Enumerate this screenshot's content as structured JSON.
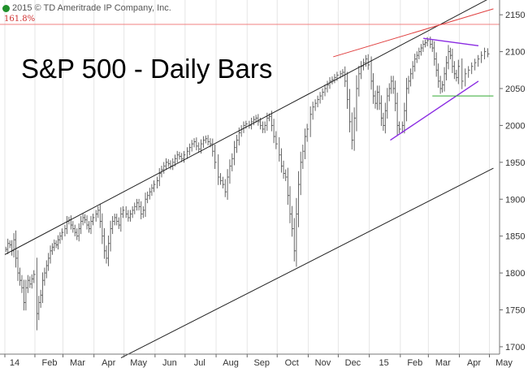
{
  "copyright": "2015 © TD Ameritrade IP Company, Inc.",
  "icons": {
    "copyright_icon": "info-circle-icon"
  },
  "colors": {
    "bars": "#555555",
    "channel": "#222222",
    "fib_line": "#f08080",
    "red_trend": "#e04040",
    "purple": "#8a2be2",
    "green": "#33aa33",
    "grid": "#e6e6e6"
  },
  "chart_data": {
    "type": "ohlc",
    "title": "S&P 500 - Daily Bars",
    "xlabel": "",
    "ylabel": "",
    "ylim": [
      1690,
      2170
    ],
    "y_ticks": [
      1700,
      1750,
      1800,
      1850,
      1900,
      1950,
      2000,
      2050,
      2100,
      2150
    ],
    "x_ticks": [
      "14",
      "Feb",
      "Mar",
      "Apr",
      "May",
      "Jun",
      "Jul",
      "Aug",
      "Sep",
      "Oct",
      "Nov",
      "Dec",
      "15",
      "Feb",
      "Mar",
      "Apr",
      "May"
    ],
    "grid": "vertical",
    "axis_side": "right",
    "series": [
      {
        "approx_closes_by_month": [
          {
            "month": "2014-01",
            "values": [
              1832,
              1840,
              1838,
              1830,
              1845,
              1820,
              1800,
              1790,
              1780,
              1760,
              1780,
              1790,
              1785,
              1792,
              1798
            ]
          },
          {
            "month": "2014-02",
            "values": [
              1745,
              1760,
              1770,
              1790,
              1800,
              1810,
              1820,
              1830,
              1835,
              1840,
              1838,
              1845,
              1850,
              1855
            ]
          },
          {
            "month": "2014-03",
            "values": [
              1860,
              1870,
              1872,
              1865,
              1860,
              1855,
              1850,
              1860,
              1870,
              1875,
              1872,
              1865,
              1860,
              1870,
              1875
            ]
          },
          {
            "month": "2014-04",
            "values": [
              1880,
              1885,
              1870,
              1850,
              1830,
              1820,
              1840,
              1860,
              1870,
              1875,
              1870,
              1865,
              1880,
              1885
            ]
          },
          {
            "month": "2014-05",
            "values": [
              1880,
              1875,
              1880,
              1885,
              1890,
              1895,
              1890,
              1880,
              1885,
              1900,
              1905,
              1910,
              1915,
              1920
            ]
          },
          {
            "month": "2014-06",
            "values": [
              1925,
              1935,
              1940,
              1945,
              1950,
              1948,
              1945,
              1950,
              1955,
              1960,
              1958,
              1955,
              1960
            ]
          },
          {
            "month": "2014-07",
            "values": [
              1965,
              1970,
              1975,
              1978,
              1972,
              1968,
              1975,
              1980,
              1982,
              1978,
              1975,
              1965,
              1950
            ]
          },
          {
            "month": "2014-08",
            "values": [
              1930,
              1925,
              1920,
              1910,
              1930,
              1945,
              1955,
              1970,
              1980,
              1990,
              1995,
              2000,
              2002
            ]
          },
          {
            "month": "2014-09",
            "values": [
              2000,
              2005,
              2008,
              2010,
              2005,
              2000,
              1995,
              2000,
              2010,
              2012,
              2000,
              1985,
              1975
            ]
          },
          {
            "month": "2014-10",
            "values": [
              1960,
              1945,
              1935,
              1930,
              1905,
              1880,
              1860,
              1830,
              1880,
              1920,
              1950,
              1965,
              1985,
              1995
            ]
          },
          {
            "month": "2014-11",
            "values": [
              2015,
              2025,
              2030,
              2035,
              2040,
              2045,
              2050,
              2055,
              2060,
              2062,
              2065,
              2068
            ]
          },
          {
            "month": "2014-12",
            "values": [
              2070,
              2072,
              2060,
              2035,
              2005,
              1980,
              2010,
              2050,
              2070,
              2080,
              2085,
              2090,
              2082
            ]
          },
          {
            "month": "2015-01",
            "values": [
              2060,
              2040,
              2030,
              2045,
              2030,
              2010,
              2000,
              2020,
              2040,
              2050,
              2060,
              2050,
              2030,
              2000,
              1995
            ]
          },
          {
            "month": "2015-02",
            "values": [
              2000,
              2020,
              2050,
              2060,
              2070,
              2080,
              2090,
              2095,
              2100,
              2105,
              2110,
              2112,
              2115
            ]
          },
          {
            "month": "2015-03",
            "values": [
              2110,
              2105,
              2090,
              2075,
              2060,
              2050,
              2055,
              2070,
              2085,
              2100,
              2095,
              2080,
              2070,
              2065,
              2080
            ]
          },
          {
            "month": "2015-04",
            "values": [
              2060,
              2070,
              2075,
              2080,
              2085,
              2090,
              2095,
              2100,
              2097
            ]
          }
        ]
      }
    ],
    "annotations": [
      {
        "type": "channel-upper",
        "from": {
          "x": "2014-01-02",
          "y": 1825
        },
        "to": {
          "x": "2015-05-05",
          "y": 2175
        }
      },
      {
        "type": "channel-lower",
        "from": {
          "x": "2014-04-28",
          "y": 1685
        },
        "to": {
          "x": "2015-05-05",
          "y": 1942
        }
      },
      {
        "type": "horizontal-fib",
        "label": "161.8%",
        "y": 2137
      },
      {
        "type": "red-trend",
        "from": {
          "x": "2014-11-26",
          "y": 2093
        },
        "to": {
          "x": "2015-05-05",
          "y": 2158
        }
      },
      {
        "type": "purple-upper",
        "from": {
          "x": "2015-02-24",
          "y": 2118
        },
        "to": {
          "x": "2015-04-20",
          "y": 2108
        }
      },
      {
        "type": "purple-lower",
        "from": {
          "x": "2015-01-22",
          "y": 1980
        },
        "to": {
          "x": "2015-04-20",
          "y": 2060
        }
      },
      {
        "type": "green-support",
        "from": {
          "x": "2015-03-05",
          "y": 2040
        },
        "to": {
          "x": "2015-05-05",
          "y": 2040
        }
      }
    ]
  }
}
